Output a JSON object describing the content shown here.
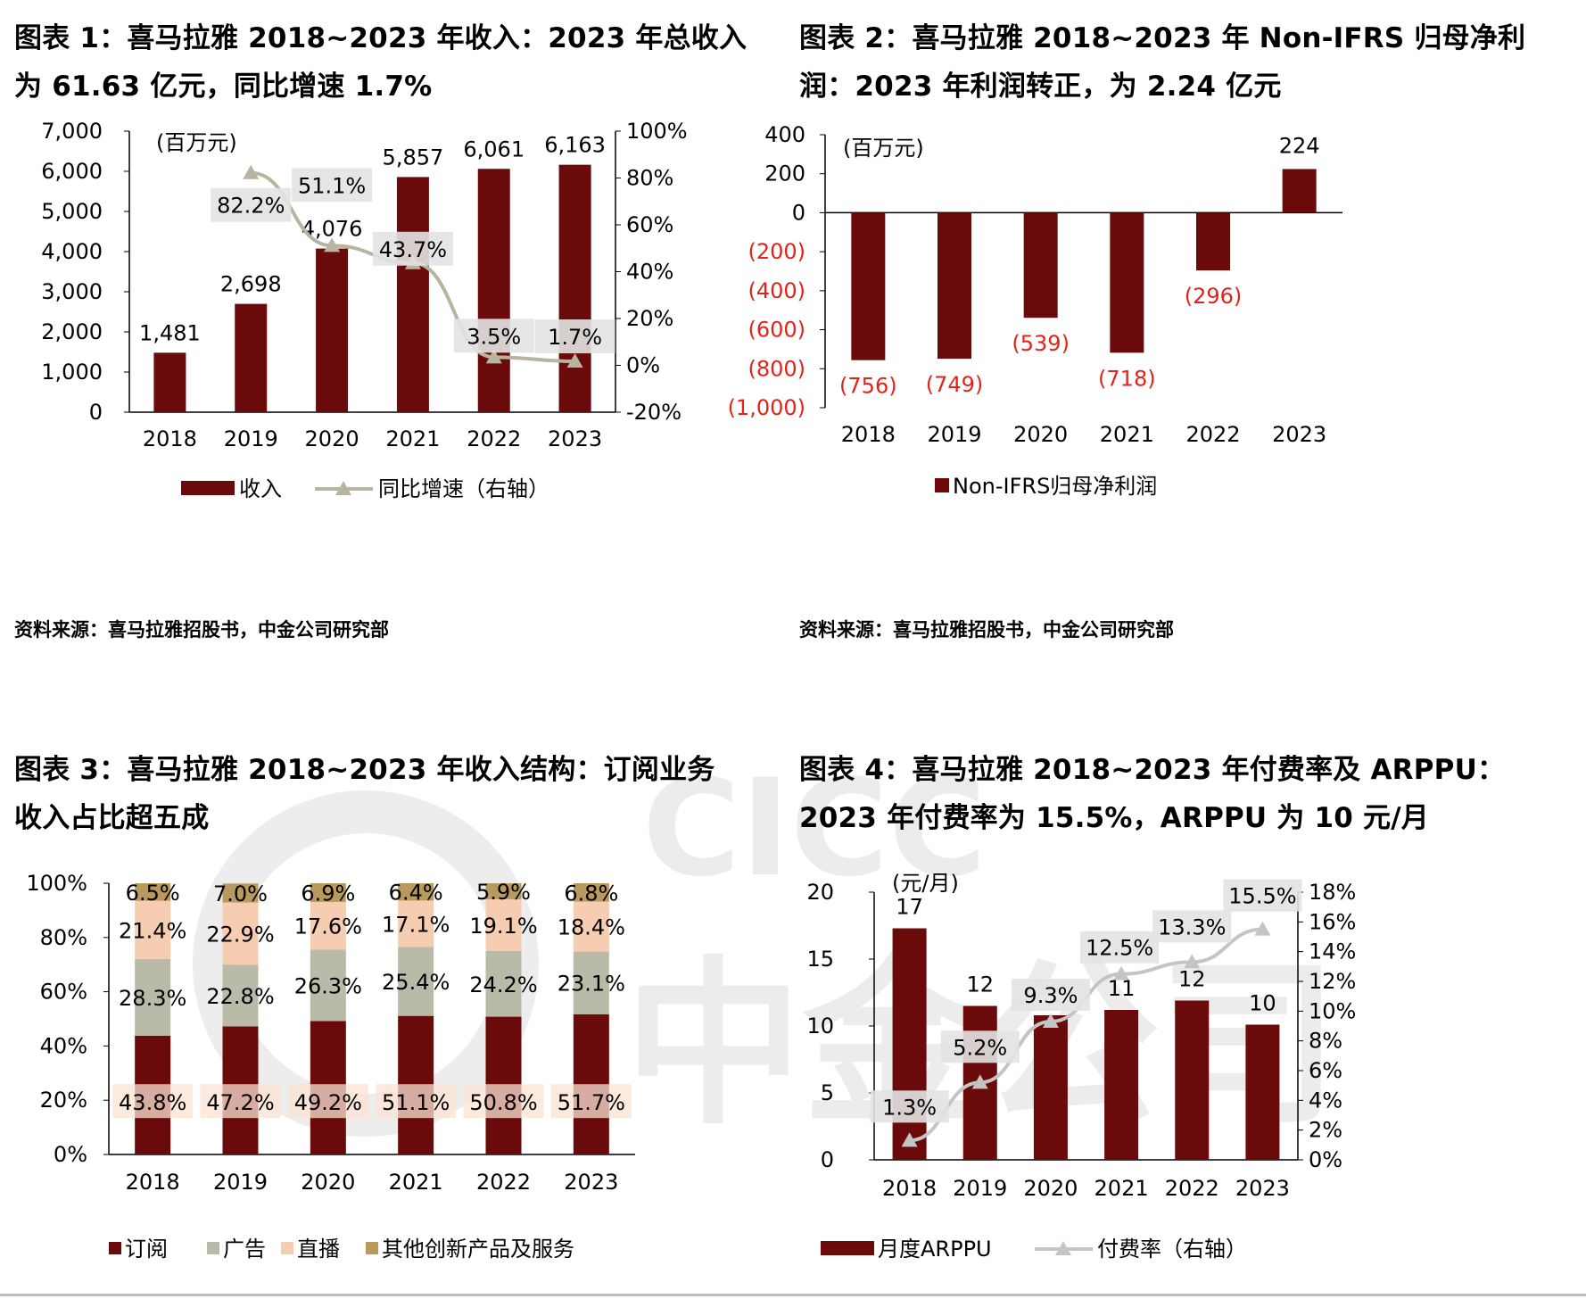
{
  "watermark": {
    "brand": "CICC",
    "name": "中金公司"
  },
  "charts": [
    {
      "title": "图表 1：喜马拉雅 2018~2023 年收入：2023 年总收入为 61.63 亿元，同比增速 1.7%",
      "title_lines": [
        "图表 1：喜马拉雅 2018~2023 年收入：2023 年总收入",
        "为 61.63 亿元，同比增速 1.7%"
      ],
      "source": "资料来源：喜马拉雅招股书，中金公司研究部",
      "unit": "(百万元)"
    },
    {
      "title": "图表 2：喜马拉雅 2018~2023 年 Non-IFRS 归母净利润：2023 年利润转正，为 2.24 亿元",
      "title_lines": [
        "图表 2：喜马拉雅 2018~2023 年 Non-IFRS 归母净利",
        "润：2023 年利润转正，为 2.24 亿元"
      ],
      "source": "资料来源：喜马拉雅招股书，中金公司研究部",
      "unit": "(百万元)"
    },
    {
      "title": "图表 3：喜马拉雅 2018~2023 年收入结构：订阅业务收入占比超五成",
      "title_lines": [
        "图表 3：喜马拉雅 2018~2023 年收入结构：订阅业务",
        "收入占比超五成"
      ],
      "source": "",
      "unit": ""
    },
    {
      "title": "图表 4：喜马拉雅 2018~2023 年付费率及 ARPPU：2023 年付费率为 15.5%，ARPPU 为 10 元/月",
      "title_lines": [
        "图表 4：喜马拉雅 2018~2023 年付费率及 ARPPU：",
        "2023 年付费率为 15.5%，ARPPU 为 10 元/月"
      ],
      "source": "",
      "unit": "(元/月)"
    }
  ],
  "chart_data": [
    {
      "type": "bar",
      "combo": "bar+line",
      "categories": [
        "2018",
        "2019",
        "2020",
        "2021",
        "2022",
        "2023"
      ],
      "ylim": [
        0,
        7000
      ],
      "yticks": [
        "0",
        "1,000",
        "2,000",
        "3,000",
        "4,000",
        "5,000",
        "6,000",
        "7,000"
      ],
      "y2lim": [
        -20,
        100
      ],
      "y2ticks": [
        "-20%",
        "0%",
        "20%",
        "40%",
        "60%",
        "80%",
        "100%"
      ],
      "series": [
        {
          "name": "收入",
          "type": "bar",
          "axis": "left",
          "color": "#6b0a0a",
          "values": [
            1481,
            2698,
            4076,
            5857,
            6061,
            6163
          ],
          "labels": [
            "1,481",
            "2,698",
            "4,076",
            "5,857",
            "6,061",
            "6,163"
          ]
        },
        {
          "name": "同比增速（右轴）",
          "type": "line",
          "axis": "right",
          "color": "#b7b59f",
          "values": [
            null,
            82.2,
            51.1,
            43.7,
            3.5,
            1.7
          ],
          "labels": [
            "",
            "82.2%",
            "51.1%",
            "43.7%",
            "3.5%",
            "1.7%"
          ]
        }
      ],
      "legend": "bottom",
      "grid": false
    },
    {
      "type": "bar",
      "categories": [
        "2018",
        "2019",
        "2020",
        "2021",
        "2022",
        "2023"
      ],
      "ylim": [
        -1000,
        400
      ],
      "yticks": [
        "(1,000)",
        "(800)",
        "(600)",
        "(400)",
        "(200)",
        "0",
        "200",
        "400"
      ],
      "series": [
        {
          "name": "Non-IFRS归母净利润",
          "color": "#6b0a0a",
          "values": [
            -756,
            -749,
            -539,
            -718,
            -296,
            224
          ],
          "labels": [
            "(756)",
            "(749)",
            "(539)",
            "(718)",
            "(296)",
            "224"
          ]
        }
      ],
      "negative_label_color": "#e0241b",
      "legend": "bottom",
      "grid": false
    },
    {
      "type": "bar",
      "stacked": true,
      "categories": [
        "2018",
        "2019",
        "2020",
        "2021",
        "2022",
        "2023"
      ],
      "ylim": [
        0,
        100
      ],
      "yticks": [
        "0%",
        "20%",
        "40%",
        "60%",
        "80%",
        "100%"
      ],
      "series": [
        {
          "name": "订阅",
          "color": "#6b0a0a",
          "values": [
            43.8,
            47.2,
            49.2,
            51.1,
            50.8,
            51.7
          ],
          "labels": [
            "43.8%",
            "47.2%",
            "49.2%",
            "51.1%",
            "50.8%",
            "51.7%"
          ]
        },
        {
          "name": "广告",
          "color": "#b9bba8",
          "values": [
            28.3,
            22.8,
            26.3,
            25.4,
            24.2,
            23.1
          ],
          "labels": [
            "28.3%",
            "22.8%",
            "26.3%",
            "25.4%",
            "24.2%",
            "23.1%"
          ]
        },
        {
          "name": "直播",
          "color": "#f6cdb1",
          "values": [
            21.4,
            22.9,
            17.6,
            17.1,
            19.1,
            18.4
          ],
          "labels": [
            "21.4%",
            "22.9%",
            "17.6%",
            "17.1%",
            "19.1%",
            "18.4%"
          ]
        },
        {
          "name": "其他创新产品及服务",
          "color": "#b99a5e",
          "values": [
            6.5,
            7.0,
            6.9,
            6.4,
            5.9,
            6.8
          ],
          "labels": [
            "6.5%",
            "7.0%",
            "6.9%",
            "6.4%",
            "5.9%",
            "6.8%"
          ]
        }
      ],
      "legend": "bottom",
      "grid": false
    },
    {
      "type": "bar",
      "combo": "bar+line",
      "categories": [
        "2018",
        "2019",
        "2020",
        "2021",
        "2022",
        "2023"
      ],
      "ylim": [
        0,
        20
      ],
      "yticks": [
        "0",
        "5",
        "10",
        "15",
        "20"
      ],
      "y2lim": [
        0,
        18
      ],
      "y2ticks": [
        "0%",
        "2%",
        "4%",
        "6%",
        "8%",
        "10%",
        "12%",
        "14%",
        "16%",
        "18%"
      ],
      "series": [
        {
          "name": "月度ARPPU",
          "type": "bar",
          "axis": "left",
          "color": "#6b0a0a",
          "values": [
            17.3,
            11.5,
            10.8,
            11.2,
            11.9,
            10.1
          ],
          "labels": [
            "17",
            "12",
            "",
            "11",
            "12",
            "10"
          ]
        },
        {
          "name": "付费率（右轴）",
          "type": "line",
          "axis": "right",
          "color": "#c4c4c4",
          "values": [
            1.3,
            5.2,
            9.3,
            12.5,
            13.3,
            15.5
          ],
          "labels": [
            "1.3%",
            "5.2%",
            "9.3%",
            "12.5%",
            "13.3%",
            "15.5%"
          ]
        }
      ],
      "legend": "bottom",
      "grid": false
    }
  ]
}
